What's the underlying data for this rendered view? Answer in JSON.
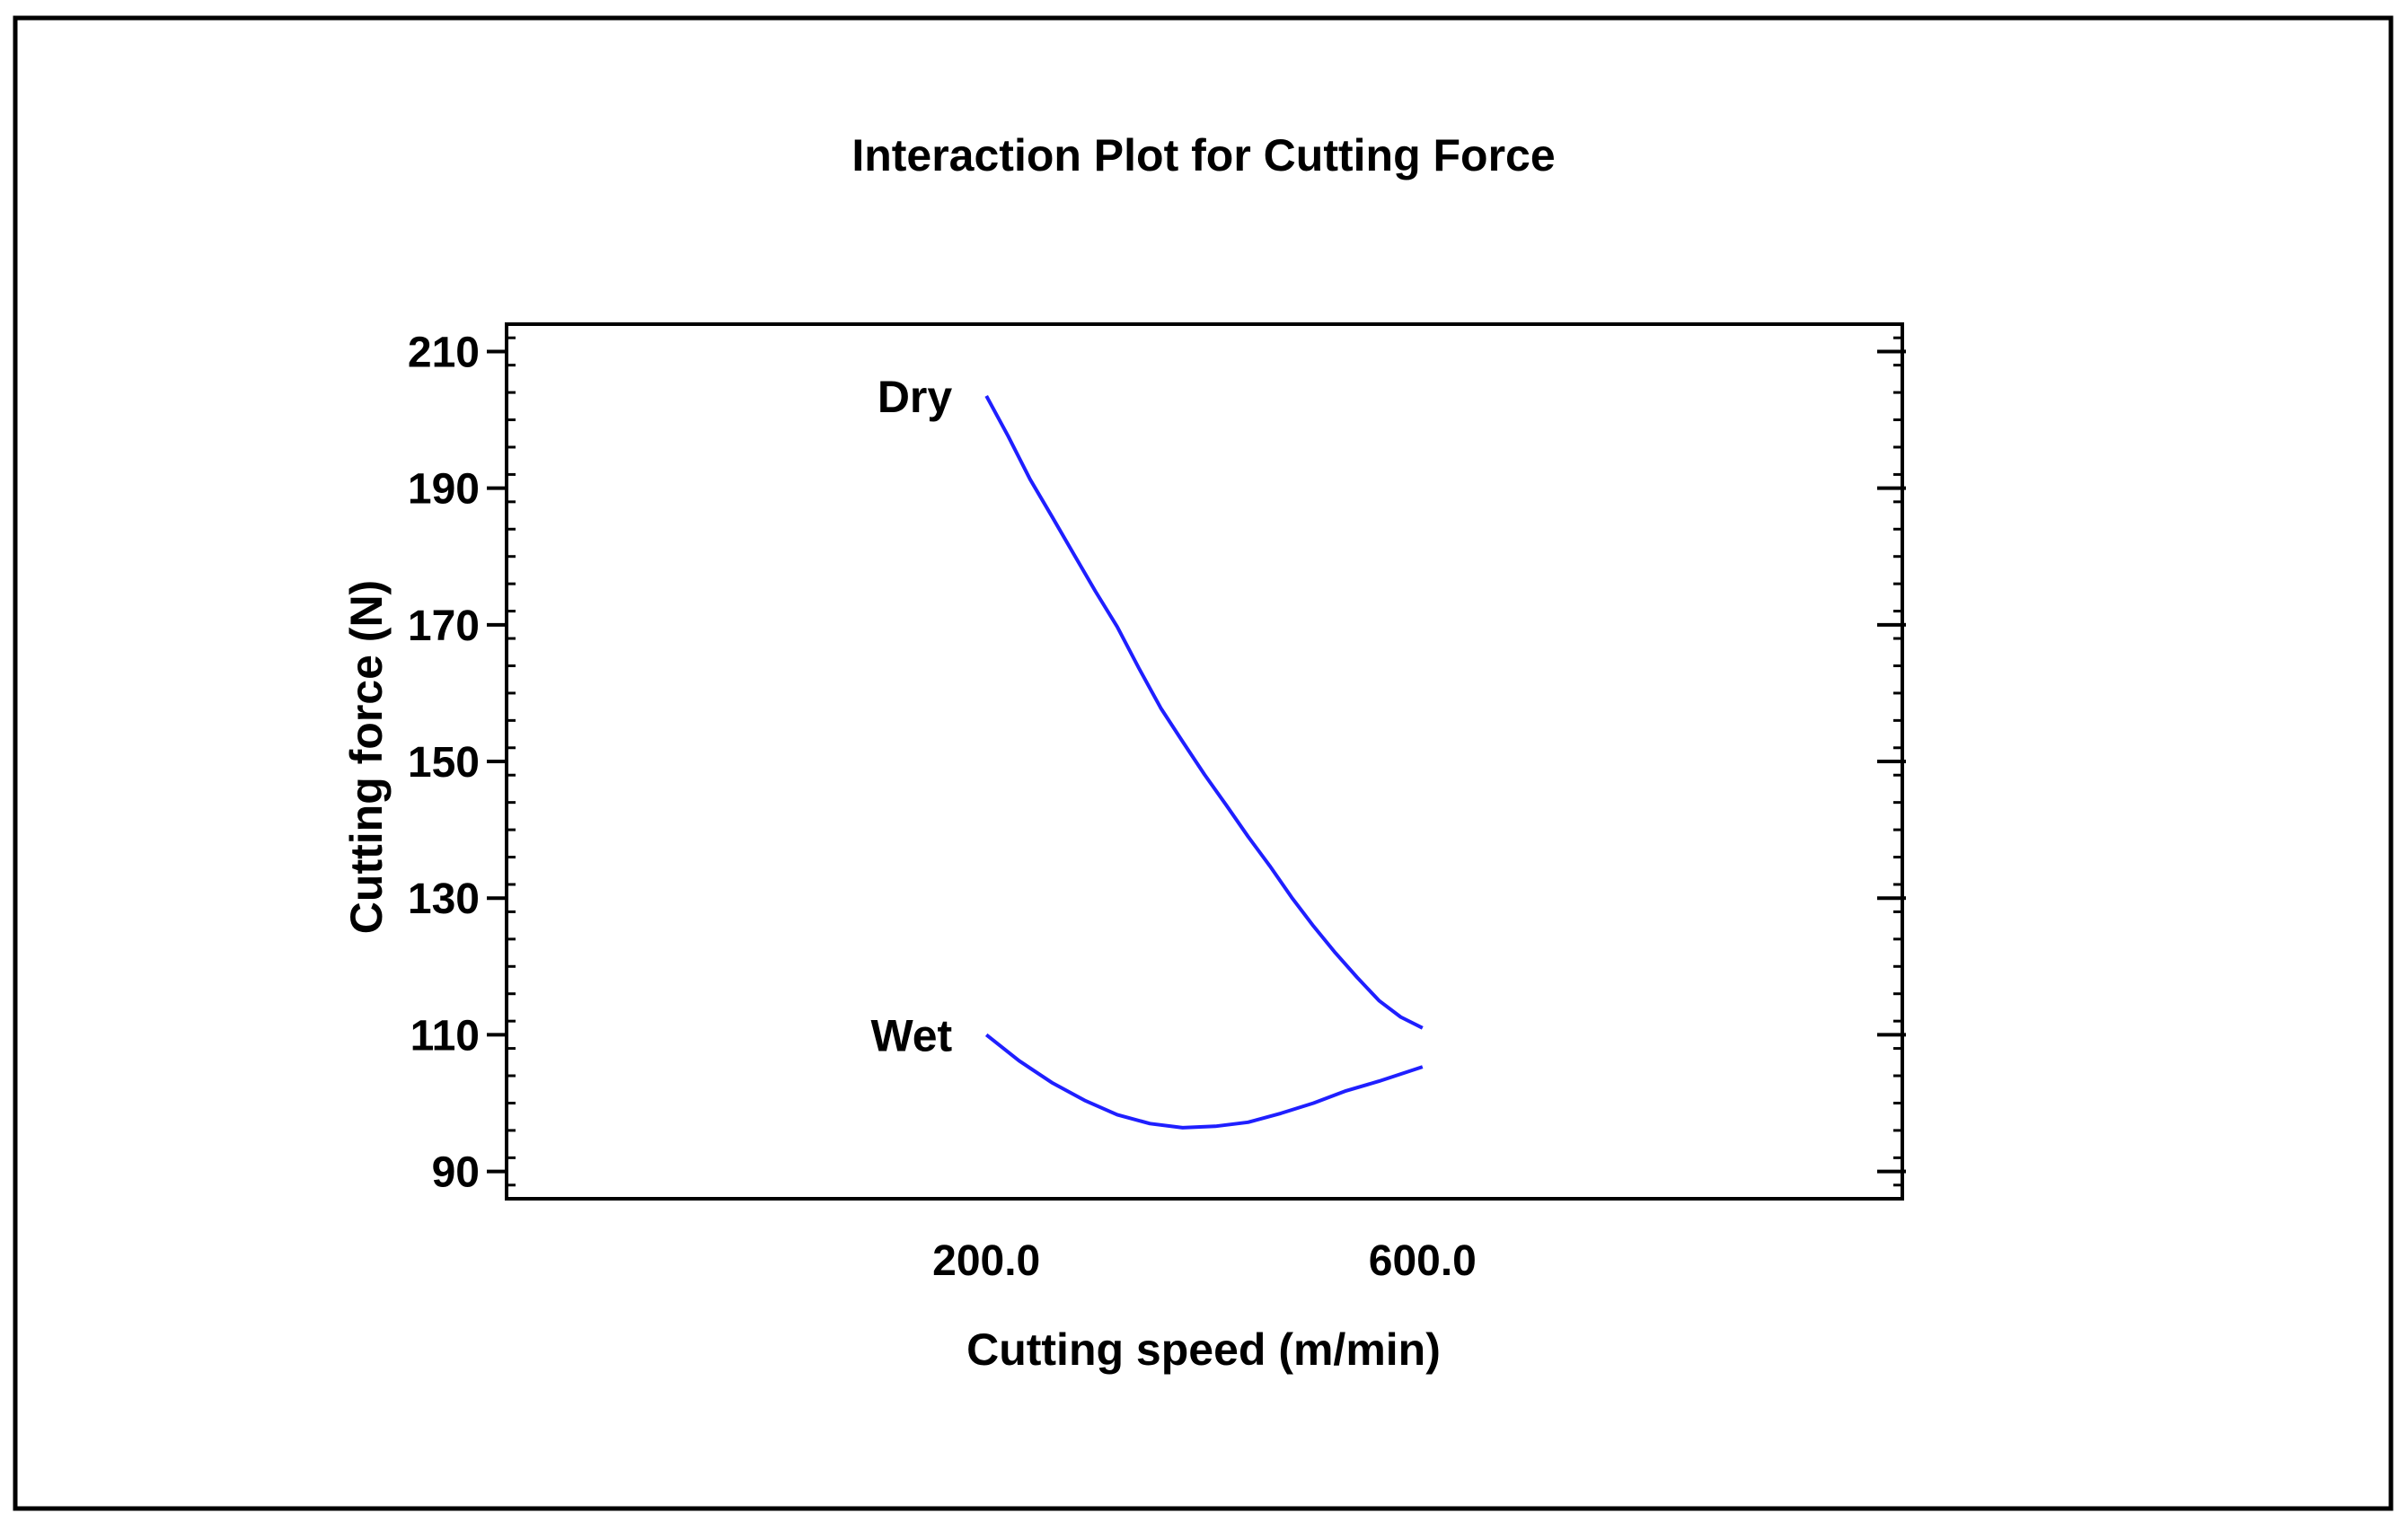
{
  "chart_data": {
    "type": "line",
    "title": "Interaction Plot for Cutting Force",
    "xlabel": "Cutting speed (m/min)",
    "ylabel": "Cutting force (N)",
    "xlim": [
      -240,
      1040
    ],
    "ylim": [
      86,
      214
    ],
    "x_ticks": [
      {
        "value": 200,
        "label": "200.0"
      },
      {
        "value": 600,
        "label": "600.0"
      }
    ],
    "y_ticks": [
      {
        "value": 90,
        "label": "90"
      },
      {
        "value": 110,
        "label": "110"
      },
      {
        "value": 130,
        "label": "130"
      },
      {
        "value": 150,
        "label": "150"
      },
      {
        "value": 170,
        "label": "170"
      },
      {
        "value": 190,
        "label": "190"
      },
      {
        "value": 210,
        "label": "210"
      }
    ],
    "y_minor_step": 4,
    "line_color": "#1f1fff",
    "series": [
      {
        "name": "Dry",
        "x": [
          200,
          220,
          240,
          260,
          280,
          300,
          320,
          340,
          360,
          380,
          400,
          420,
          440,
          460,
          480,
          500,
          520,
          540,
          560,
          580,
          600
        ],
        "y": [
          203.5,
          197.6,
          191.3,
          185.9,
          180.4,
          174.9,
          169.7,
          163.6,
          157.8,
          152.9,
          148.1,
          143.6,
          139.0,
          134.7,
          130.1,
          125.9,
          122.0,
          118.4,
          115.0,
          112.6,
          111.0
        ]
      },
      {
        "name": "Wet",
        "x": [
          200,
          230,
          260,
          290,
          320,
          350,
          380,
          410,
          440,
          470,
          500,
          530,
          560,
          600
        ],
        "y": [
          110.0,
          106.2,
          103.0,
          100.4,
          98.3,
          97.0,
          96.4,
          96.6,
          97.2,
          98.5,
          100.0,
          101.8,
          103.2,
          105.3
        ]
      }
    ]
  }
}
